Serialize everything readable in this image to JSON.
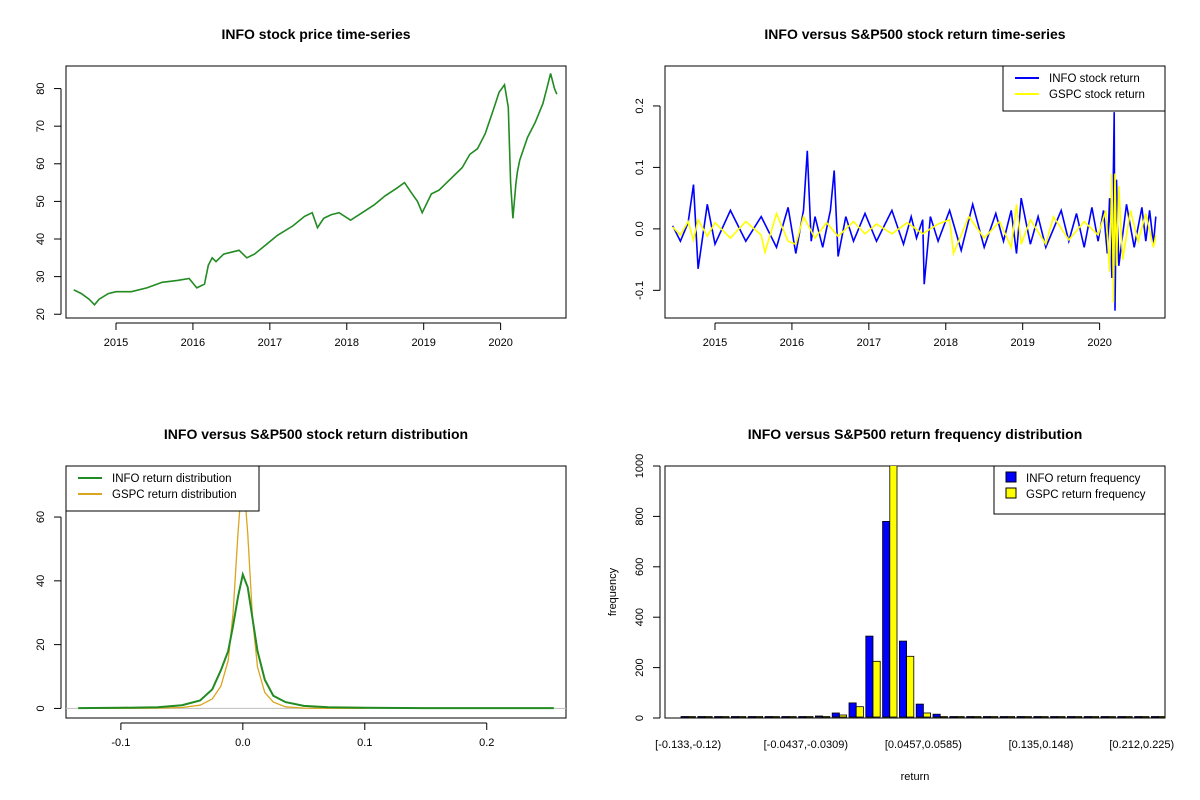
{
  "chart_data": [
    {
      "type": "line",
      "title": "INFO stock price time-series",
      "xlabel": "",
      "ylabel": "",
      "xlim": [
        2014.35,
        2020.85
      ],
      "ylim": [
        19,
        86
      ],
      "x_ticks": [
        2015,
        2016,
        2017,
        2018,
        2019,
        2020
      ],
      "x_tick_labels": [
        "2015",
        "2016",
        "2017",
        "2018",
        "2019",
        "2020"
      ],
      "y_ticks": [
        20,
        30,
        40,
        50,
        60,
        70,
        80
      ],
      "y_tick_labels": [
        "20",
        "30",
        "40",
        "50",
        "60",
        "70",
        "80"
      ],
      "grid": false,
      "color": "#228B22",
      "series": [
        {
          "x": [
            2014.45,
            2014.55,
            2014.65,
            2014.72,
            2014.78,
            2014.9,
            2015.0,
            2015.2,
            2015.4,
            2015.6,
            2015.8,
            2015.95,
            2016.05,
            2016.15,
            2016.2,
            2016.25,
            2016.3,
            2016.4,
            2016.5,
            2016.6,
            2016.7,
            2016.8,
            2016.95,
            2017.1,
            2017.3,
            2017.45,
            2017.55,
            2017.62,
            2017.7,
            2017.8,
            2017.9,
            2018.05,
            2018.2,
            2018.35,
            2018.5,
            2018.65,
            2018.75,
            2018.85,
            2018.92,
            2018.98,
            2019.1,
            2019.2,
            2019.3,
            2019.5,
            2019.6,
            2019.7,
            2019.8,
            2019.9,
            2019.98,
            2020.05,
            2020.1,
            2020.13,
            2020.16,
            2020.2,
            2020.22,
            2020.25,
            2020.35,
            2020.45,
            2020.55,
            2020.6,
            2020.65,
            2020.7,
            2020.73
          ],
          "values": [
            26.5,
            25.5,
            24,
            22.5,
            24,
            25.5,
            26,
            26,
            27,
            28.5,
            29,
            29.5,
            27,
            28,
            33,
            35,
            34,
            36,
            36.5,
            37,
            35,
            36,
            38.5,
            41,
            43.5,
            46,
            47,
            43,
            45.5,
            46.5,
            47,
            45,
            47,
            49,
            51.5,
            53.5,
            55,
            52,
            50,
            47,
            52,
            53,
            55,
            59,
            62.5,
            64,
            68,
            74,
            79,
            81,
            75,
            55,
            45.5,
            55,
            58,
            61,
            67,
            71,
            76,
            80,
            84,
            80,
            78.5
          ]
        }
      ]
    },
    {
      "type": "line",
      "title": "INFO versus S&P500 stock return time-series",
      "xlabel": "",
      "ylabel": "",
      "xlim": [
        2014.35,
        2020.85
      ],
      "ylim": [
        -0.145,
        0.265
      ],
      "x_ticks": [
        2015,
        2016,
        2017,
        2018,
        2019,
        2020
      ],
      "x_tick_labels": [
        "2015",
        "2016",
        "2017",
        "2018",
        "2019",
        "2020"
      ],
      "y_ticks": [
        -0.1,
        0.0,
        0.1,
        0.2
      ],
      "y_tick_labels": [
        "-0.1",
        "0.0",
        "0.1",
        "0.2"
      ],
      "grid": false,
      "legend_position": "top-right",
      "series": [
        {
          "name": "INFO stock return",
          "color": "#0000FF",
          "x": [
            2014.45,
            2014.55,
            2014.65,
            2014.72,
            2014.78,
            2014.9,
            2015.0,
            2015.2,
            2015.4,
            2015.6,
            2015.8,
            2015.95,
            2016.05,
            2016.15,
            2016.2,
            2016.25,
            2016.3,
            2016.4,
            2016.5,
            2016.55,
            2016.6,
            2016.7,
            2016.8,
            2016.95,
            2017.1,
            2017.3,
            2017.45,
            2017.55,
            2017.62,
            2017.7,
            2017.72,
            2017.8,
            2017.9,
            2018.05,
            2018.2,
            2018.35,
            2018.5,
            2018.65,
            2018.75,
            2018.85,
            2018.92,
            2018.98,
            2019.1,
            2019.2,
            2019.3,
            2019.5,
            2019.6,
            2019.7,
            2019.8,
            2019.9,
            2019.98,
            2020.05,
            2020.1,
            2020.13,
            2020.16,
            2020.19,
            2020.2,
            2020.22,
            2020.25,
            2020.35,
            2020.45,
            2020.55,
            2020.6,
            2020.65,
            2020.7,
            2020.73
          ],
          "values": [
            0.005,
            -0.02,
            0.01,
            0.072,
            -0.065,
            0.04,
            -0.025,
            0.03,
            -0.02,
            0.02,
            -0.03,
            0.035,
            -0.04,
            0.03,
            0.127,
            -0.02,
            0.02,
            -0.03,
            0.03,
            0.095,
            -0.045,
            0.02,
            -0.02,
            0.025,
            -0.02,
            0.03,
            -0.025,
            0.02,
            -0.015,
            0.015,
            -0.09,
            0.02,
            -0.02,
            0.03,
            -0.035,
            0.04,
            -0.03,
            0.025,
            -0.02,
            0.03,
            -0.04,
            0.05,
            -0.025,
            0.02,
            -0.03,
            0.03,
            -0.02,
            0.025,
            -0.03,
            0.035,
            -0.02,
            0.03,
            -0.04,
            0.05,
            -0.08,
            0.19,
            -0.133,
            0.08,
            -0.06,
            0.04,
            -0.03,
            0.035,
            -0.02,
            0.03,
            -0.025,
            0.02
          ]
        },
        {
          "name": "GSPC stock return",
          "color": "#FFFF00",
          "x": [
            2014.45,
            2014.55,
            2014.65,
            2014.72,
            2014.78,
            2014.9,
            2015.0,
            2015.2,
            2015.4,
            2015.6,
            2015.65,
            2015.8,
            2015.95,
            2016.05,
            2016.15,
            2016.3,
            2016.45,
            2016.6,
            2016.8,
            2016.95,
            2017.1,
            2017.3,
            2017.5,
            2017.7,
            2017.9,
            2018.05,
            2018.1,
            2018.3,
            2018.5,
            2018.7,
            2018.85,
            2018.92,
            2018.98,
            2019.1,
            2019.3,
            2019.4,
            2019.6,
            2019.8,
            2019.98,
            2020.08,
            2020.13,
            2020.16,
            2020.18,
            2020.2,
            2020.22,
            2020.25,
            2020.3,
            2020.4,
            2020.5,
            2020.6,
            2020.7,
            2020.73
          ],
          "values": [
            0.003,
            -0.01,
            0.012,
            -0.018,
            0.015,
            -0.012,
            0.01,
            -0.015,
            0.012,
            -0.01,
            -0.038,
            0.025,
            -0.02,
            -0.025,
            0.02,
            -0.015,
            0.01,
            -0.012,
            0.012,
            -0.008,
            0.008,
            -0.008,
            0.01,
            -0.008,
            0.008,
            0.015,
            -0.04,
            0.02,
            -0.015,
            0.012,
            -0.03,
            0.04,
            -0.025,
            0.015,
            -0.025,
            0.02,
            -0.018,
            0.012,
            -0.01,
            0.03,
            -0.07,
            0.09,
            -0.12,
            0.09,
            -0.06,
            0.07,
            -0.05,
            0.03,
            -0.02,
            0.025,
            -0.03,
            -0.01
          ]
        }
      ]
    },
    {
      "type": "line",
      "title": "INFO versus S&P500 stock return distribution",
      "xlabel": "",
      "ylabel": "",
      "xlim": [
        -0.145,
        0.265
      ],
      "ylim": [
        -3,
        76
      ],
      "x_ticks": [
        -0.1,
        0.0,
        0.1,
        0.2
      ],
      "x_tick_labels": [
        "-0.1",
        "0.0",
        "0.1",
        "0.2"
      ],
      "y_ticks": [
        0,
        20,
        40,
        60
      ],
      "y_tick_labels": [
        "0",
        "20",
        "40",
        "60"
      ],
      "grid": false,
      "legend_position": "top-left",
      "series": [
        {
          "name": "INFO return distribution",
          "color": "#228B22",
          "x": [
            -0.135,
            -0.1,
            -0.07,
            -0.05,
            -0.035,
            -0.025,
            -0.018,
            -0.012,
            -0.008,
            -0.004,
            0.0,
            0.004,
            0.008,
            0.012,
            0.018,
            0.025,
            0.035,
            0.05,
            0.07,
            0.1,
            0.15,
            0.2,
            0.255
          ],
          "values": [
            0.1,
            0.2,
            0.4,
            1.0,
            2.5,
            6,
            12,
            18,
            26,
            35,
            42,
            38,
            28,
            18,
            9,
            4,
            2,
            0.8,
            0.4,
            0.2,
            0.1,
            0.1,
            0.1
          ]
        },
        {
          "name": "GSPC return distribution",
          "color": "#DAA520",
          "x": [
            -0.135,
            -0.1,
            -0.07,
            -0.05,
            -0.035,
            -0.025,
            -0.018,
            -0.012,
            -0.008,
            -0.004,
            0.0,
            0.004,
            0.008,
            0.012,
            0.018,
            0.025,
            0.035,
            0.05,
            0.07,
            0.1
          ],
          "values": [
            0.0,
            0.0,
            0.1,
            0.3,
            1.0,
            3,
            7,
            15,
            30,
            55,
            75,
            55,
            28,
            13,
            5,
            2,
            0.5,
            0.1,
            0.0,
            0.0
          ]
        }
      ]
    },
    {
      "type": "bar",
      "title": "INFO versus S&P500 return frequency distribution",
      "xlabel": "return",
      "ylabel": "frequency",
      "ylim": [
        0,
        1000
      ],
      "y_ticks": [
        0,
        200,
        400,
        600,
        800,
        1000
      ],
      "y_tick_labels": [
        "0",
        "200",
        "400",
        "600",
        "800",
        "1000"
      ],
      "grid": false,
      "legend_position": "top-right",
      "x_tick_labels": [
        {
          "index": 0,
          "label": "[-0.133,-0.12)"
        },
        {
          "index": 7,
          "label": "[-0.0437,-0.0309)"
        },
        {
          "index": 14,
          "label": "[0.0457,0.0585)"
        },
        {
          "index": 21,
          "label": "[0.135,0.148)"
        },
        {
          "index": 27,
          "label": "[0.212,0.225)"
        }
      ],
      "n_bins": 29,
      "series": [
        {
          "name": "INFO return frequency",
          "color": "#0000FF",
          "values": [
            1,
            0,
            0,
            0,
            1,
            1,
            2,
            3,
            8,
            20,
            60,
            325,
            780,
            305,
            55,
            15,
            5,
            3,
            2,
            1,
            1,
            0,
            0,
            0,
            0,
            0,
            0,
            0,
            1
          ]
        },
        {
          "name": "GSPC return frequency",
          "color": "#FFFF00",
          "values": [
            0,
            0,
            0,
            0,
            0,
            0,
            1,
            2,
            3,
            12,
            45,
            225,
            1010,
            245,
            20,
            5,
            2,
            1,
            0,
            0,
            0,
            0,
            0,
            0,
            0,
            0,
            0,
            0,
            0
          ]
        }
      ]
    }
  ]
}
